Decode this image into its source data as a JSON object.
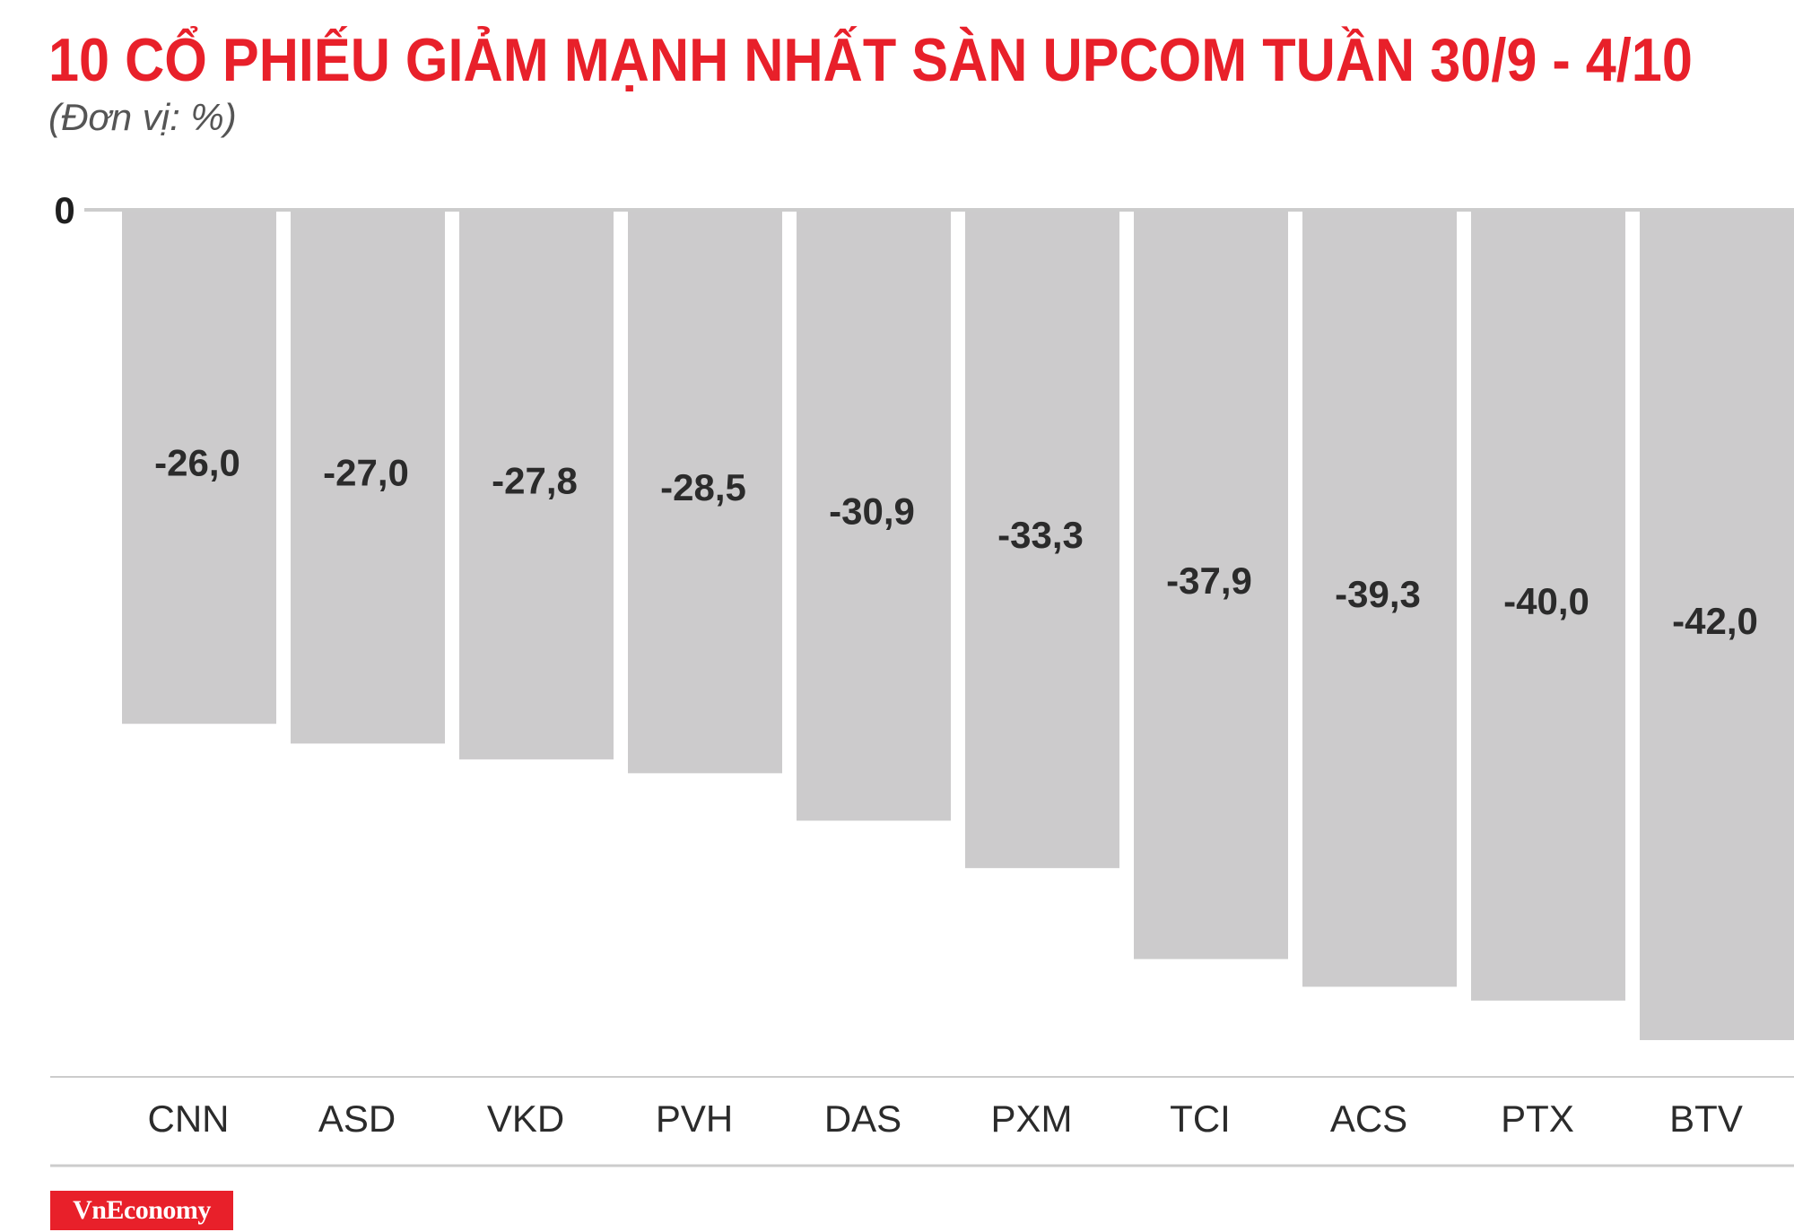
{
  "title": "10 CỔ PHIẾU GIẢM MẠNH NHẤT SÀN UPCOM TUẦN 30/9 - 4/10",
  "subtitle": "(Đơn vị: %)",
  "brand": "VnEconomy",
  "colors": {
    "title": "#e8202a",
    "bar": "#cccbcc",
    "label": "#2b2b2b",
    "axis": "#cccccc",
    "brand_bg": "#e8202a"
  },
  "chart_data": {
    "type": "bar",
    "title": "10 CỔ PHIẾU GIẢM MẠNH NHẤT SÀN UPCOM TUẦN 30/9 - 4/10",
    "subtitle": "(Đơn vị: %)",
    "categories": [
      "CNN",
      "ASD",
      "VKD",
      "PVH",
      "DAS",
      "PXM",
      "TCI",
      "ACS",
      "PTX",
      "BTV"
    ],
    "values": [
      -26.0,
      -27.0,
      -27.8,
      -28.5,
      -30.9,
      -33.3,
      -37.9,
      -39.3,
      -40.0,
      -42.0
    ],
    "value_labels": [
      "-26,0",
      "-27,0",
      "-27,8",
      "-28,5",
      "-30,9",
      "-33,3",
      "-37,9",
      "-39,3",
      "-40,0",
      "-42,0"
    ],
    "y_tick_label": "0",
    "xlabel": "",
    "ylabel": "",
    "ylim": [
      -42,
      0
    ],
    "grid": false,
    "legend": "none"
  }
}
